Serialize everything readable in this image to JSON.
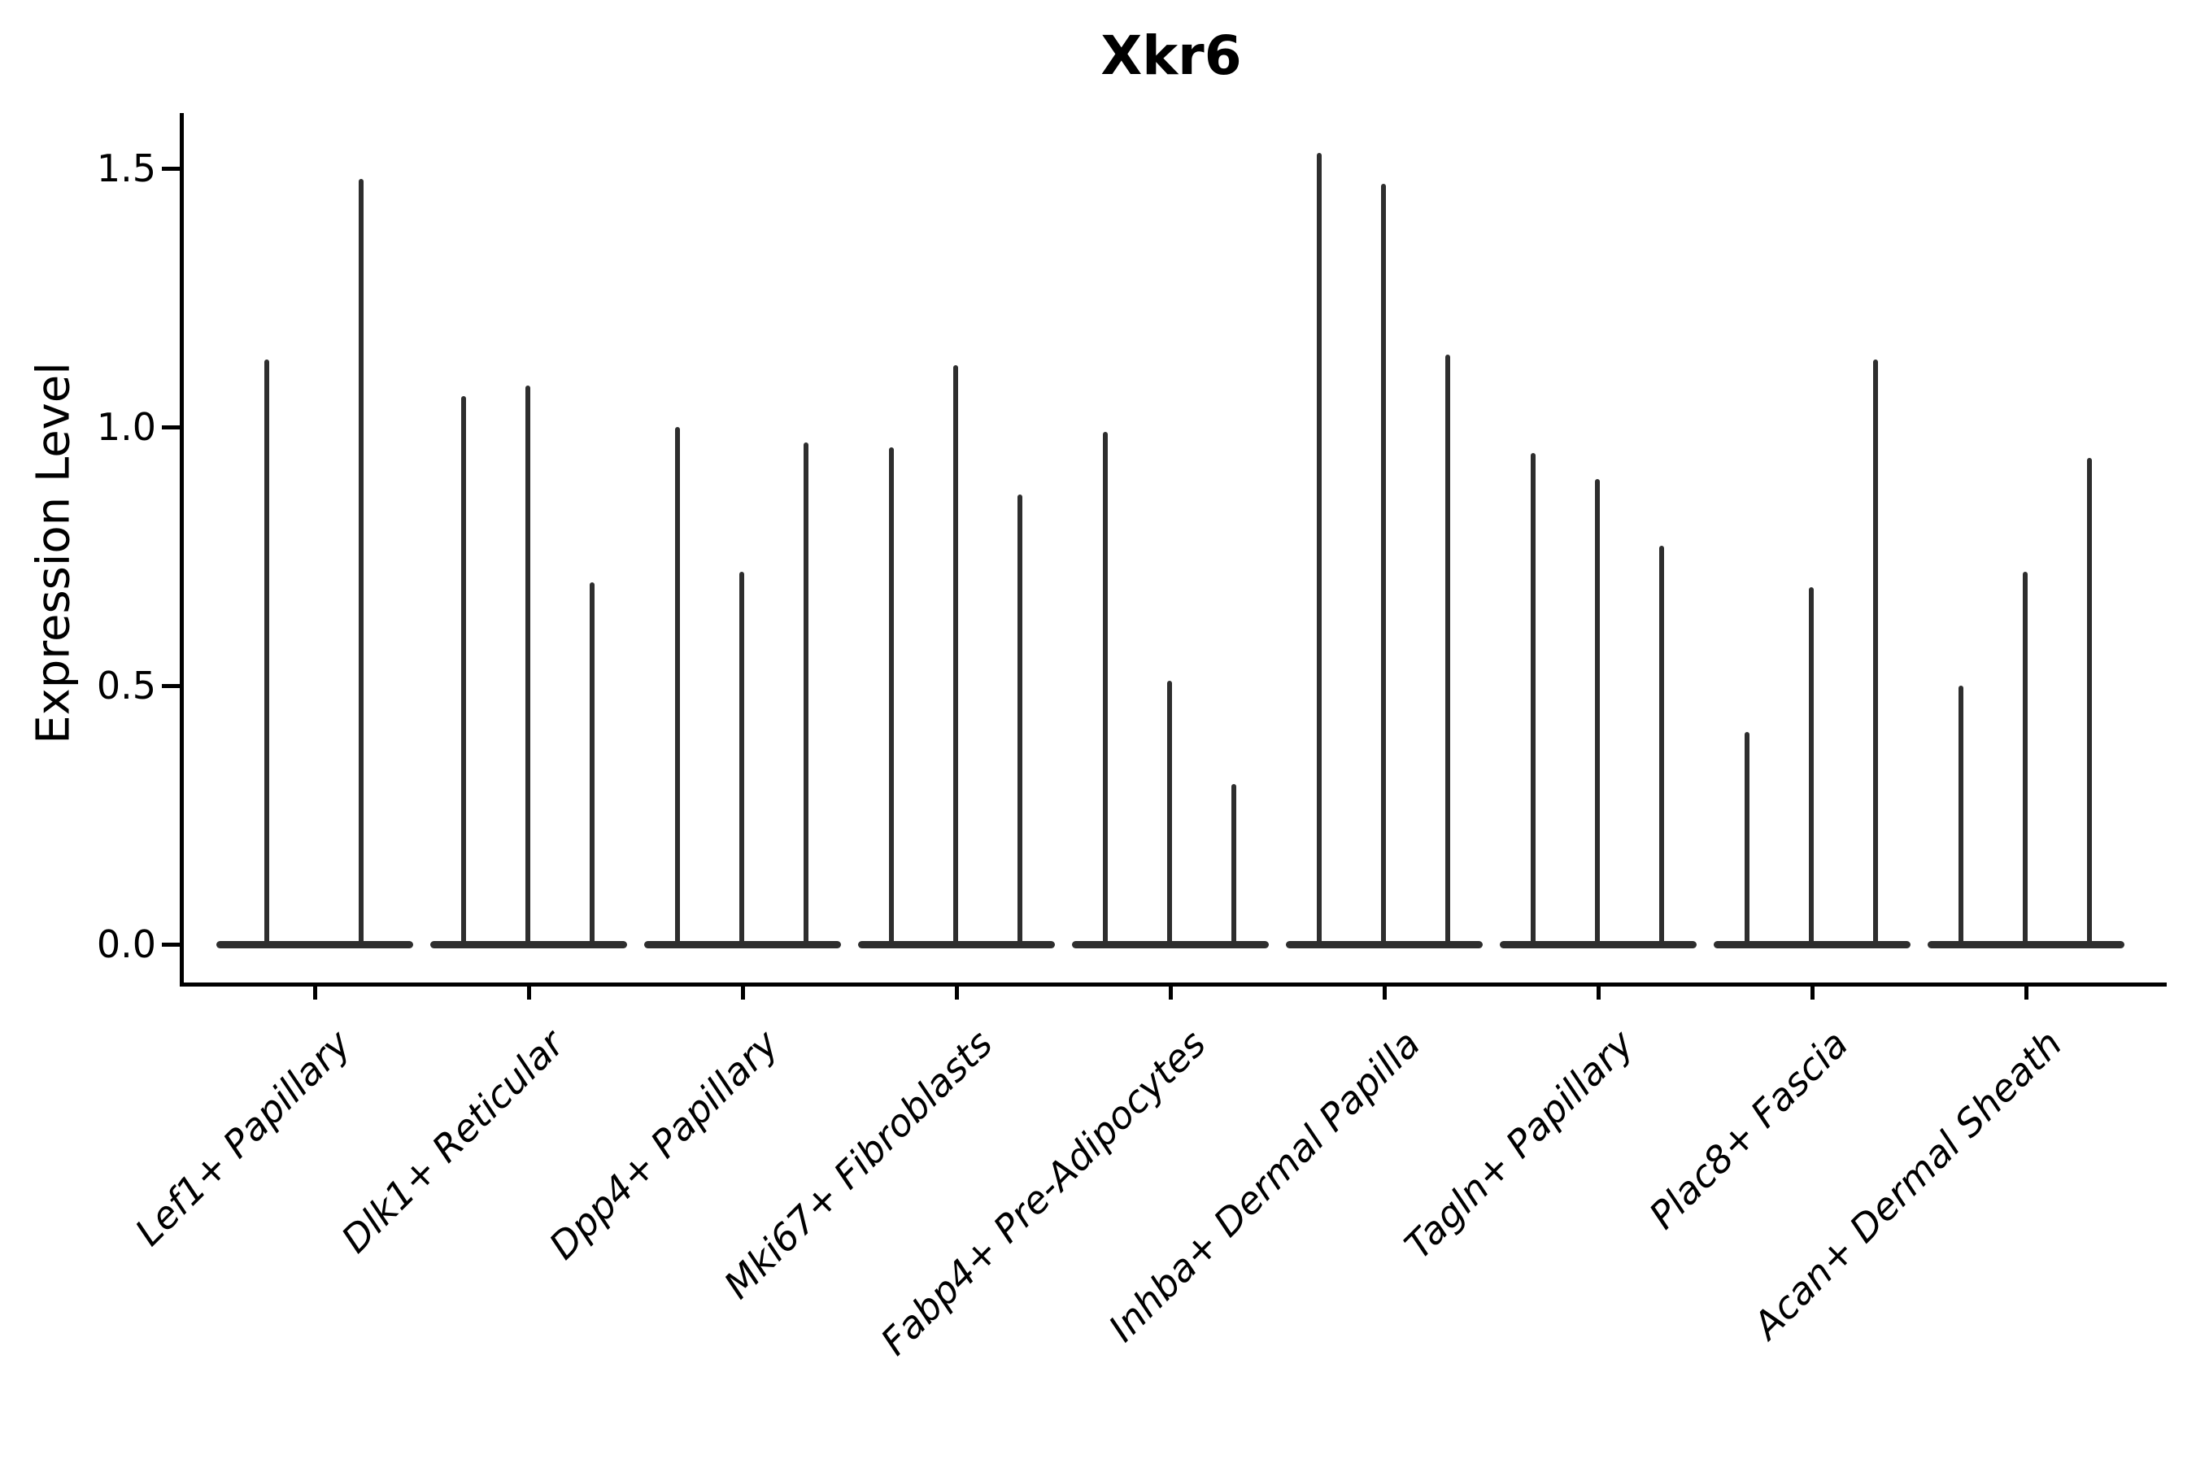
{
  "chart_data": {
    "type": "violin",
    "title": "Xkr6",
    "xlabel": "",
    "ylabel": "Expression Level",
    "categories": [
      "Lef1+ Papillary",
      "Dlk1+ Reticular",
      "Dpp4+ Papillary",
      "Mki67+ Fibroblasts",
      "Fabp4+ Pre-Adipocytes",
      "Inhba+ Dermal Papilla",
      "Tagln+ Papillary",
      "Plac8+ Fascia",
      "Acan+ Dermal Sheath"
    ],
    "violin_peaks": [
      [
        1.13,
        1.48
      ],
      [
        1.06,
        1.08,
        0.7
      ],
      [
        1.0,
        0.72,
        0.97
      ],
      [
        0.96,
        1.12,
        0.87
      ],
      [
        0.99,
        0.51,
        0.31
      ],
      [
        1.53,
        1.47,
        1.14
      ],
      [
        0.95,
        0.9,
        0.77
      ],
      [
        0.41,
        0.69,
        1.13
      ],
      [
        0.5,
        0.72,
        0.94
      ]
    ],
    "baseline_value": 0.0,
    "yticks": {
      "labels": [
        "0.0",
        "0.5",
        "1.0",
        "1.5"
      ],
      "values": [
        0,
        0.5,
        1,
        1.5
      ]
    },
    "ylim": [
      -0.08,
      1.61
    ],
    "grid": false,
    "legend_position": "none",
    "colors": {
      "violin": "#2e2e2e",
      "axis": "#000000",
      "text": "#000000",
      "background": "#ffffff"
    }
  }
}
